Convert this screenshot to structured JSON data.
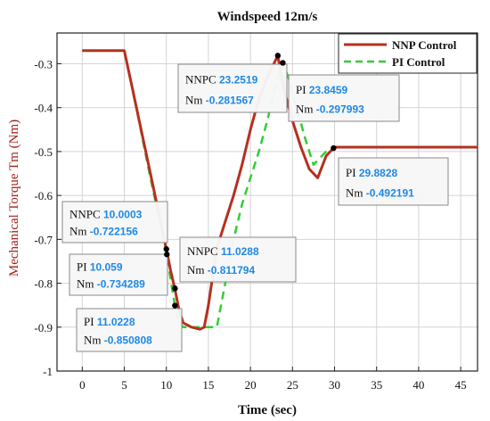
{
  "chart_data": {
    "type": "line",
    "title": "Windspeed 12m/s",
    "xlabel": "Time (sec)",
    "ylabel": "Mechanical Torque Tm (Nm)",
    "xlim": [
      -3,
      47
    ],
    "ylim": [
      -1,
      -0.23
    ],
    "xticks": [
      0,
      5,
      10,
      15,
      20,
      25,
      30,
      35,
      40,
      45
    ],
    "yticks": [
      -1,
      -0.9,
      -0.8,
      -0.7,
      -0.6,
      -0.5,
      -0.4,
      -0.3
    ],
    "xtick_labels": [
      "0",
      "5",
      "10",
      "15",
      "20",
      "25",
      "30",
      "35",
      "40",
      "45"
    ],
    "ytick_labels": [
      "-1",
      "-0.9",
      "-0.8",
      "-0.7",
      "-0.6",
      "-0.5",
      "-0.4",
      "-0.3"
    ],
    "grid": true,
    "legend": "top-right",
    "colors": {
      "nnp": "#b5301f",
      "pi": "#33cc33",
      "ylabel": "#a3231a",
      "datatip_value": "#1e88e5",
      "datatip_marker": "#000000"
    },
    "series": [
      {
        "name": "NNP Control",
        "style": "solid",
        "x": [
          0,
          5,
          6,
          8,
          10,
          10.5,
          11,
          11.5,
          12,
          13,
          14,
          14.5,
          15,
          16,
          17,
          18,
          19,
          20,
          21,
          22,
          23.25,
          24,
          25,
          26,
          27,
          28,
          29,
          29.88,
          30,
          35,
          40,
          45,
          47
        ],
        "y": [
          -0.27,
          -0.27,
          -0.36,
          -0.54,
          -0.722,
          -0.77,
          -0.812,
          -0.86,
          -0.89,
          -0.9,
          -0.905,
          -0.9,
          -0.85,
          -0.72,
          -0.66,
          -0.6,
          -0.53,
          -0.45,
          -0.38,
          -0.33,
          -0.282,
          -0.36,
          -0.43,
          -0.49,
          -0.54,
          -0.56,
          -0.51,
          -0.492,
          -0.49,
          -0.49,
          -0.49,
          -0.49,
          -0.49
        ]
      },
      {
        "name": "PI Control",
        "style": "dashed",
        "x": [
          0,
          5,
          6,
          8,
          10.06,
          10.5,
          11.02,
          11.5,
          12,
          13,
          14,
          15,
          16,
          17,
          18,
          19,
          20,
          21,
          22,
          23,
          23.85,
          24.5,
          25.5,
          26.5,
          27.5,
          29,
          29.88,
          30,
          35,
          40,
          45,
          47
        ],
        "y": [
          -0.27,
          -0.27,
          -0.36,
          -0.55,
          -0.734,
          -0.79,
          -0.851,
          -0.89,
          -0.9,
          -0.9,
          -0.9,
          -0.9,
          -0.9,
          -0.8,
          -0.7,
          -0.62,
          -0.56,
          -0.5,
          -0.43,
          -0.35,
          -0.298,
          -0.33,
          -0.4,
          -0.47,
          -0.53,
          -0.5,
          -0.492,
          -0.49,
          -0.49,
          -0.49,
          -0.49,
          -0.49
        ]
      }
    ],
    "datatips": [
      {
        "l1_label": "NNPC",
        "l1_value": "10.0003",
        "l2_label": "Nm",
        "l2_value": "-0.722156",
        "x": 10.0003,
        "y": -0.722156
      },
      {
        "l1_label": "PI",
        "l1_value": "10.059",
        "l2_label": "Nm",
        "l2_value": "-0.734289",
        "x": 10.059,
        "y": -0.734289
      },
      {
        "l1_label": "PI",
        "l1_value": "11.0228",
        "l2_label": "Nm",
        "l2_value": "-0.850808",
        "x": 11.0228,
        "y": -0.850808
      },
      {
        "l1_label": "NNPC",
        "l1_value": "11.0288",
        "l2_label": "Nm",
        "l2_value": "-0.811794",
        "x": 11.0288,
        "y": -0.811794
      },
      {
        "l1_label": "NNPC",
        "l1_value": "23.2519",
        "l2_label": "Nm",
        "l2_value": "-0.281567",
        "x": 23.2519,
        "y": -0.281567
      },
      {
        "l1_label": "PI",
        "l1_value": "23.8459",
        "l2_label": "Nm",
        "l2_value": "-0.297993",
        "x": 23.8459,
        "y": -0.297993
      },
      {
        "l1_label": "PI",
        "l1_value": "29.8828",
        "l2_label": "Nm",
        "l2_value": "-0.492191",
        "x": 29.8828,
        "y": -0.492191
      }
    ]
  }
}
